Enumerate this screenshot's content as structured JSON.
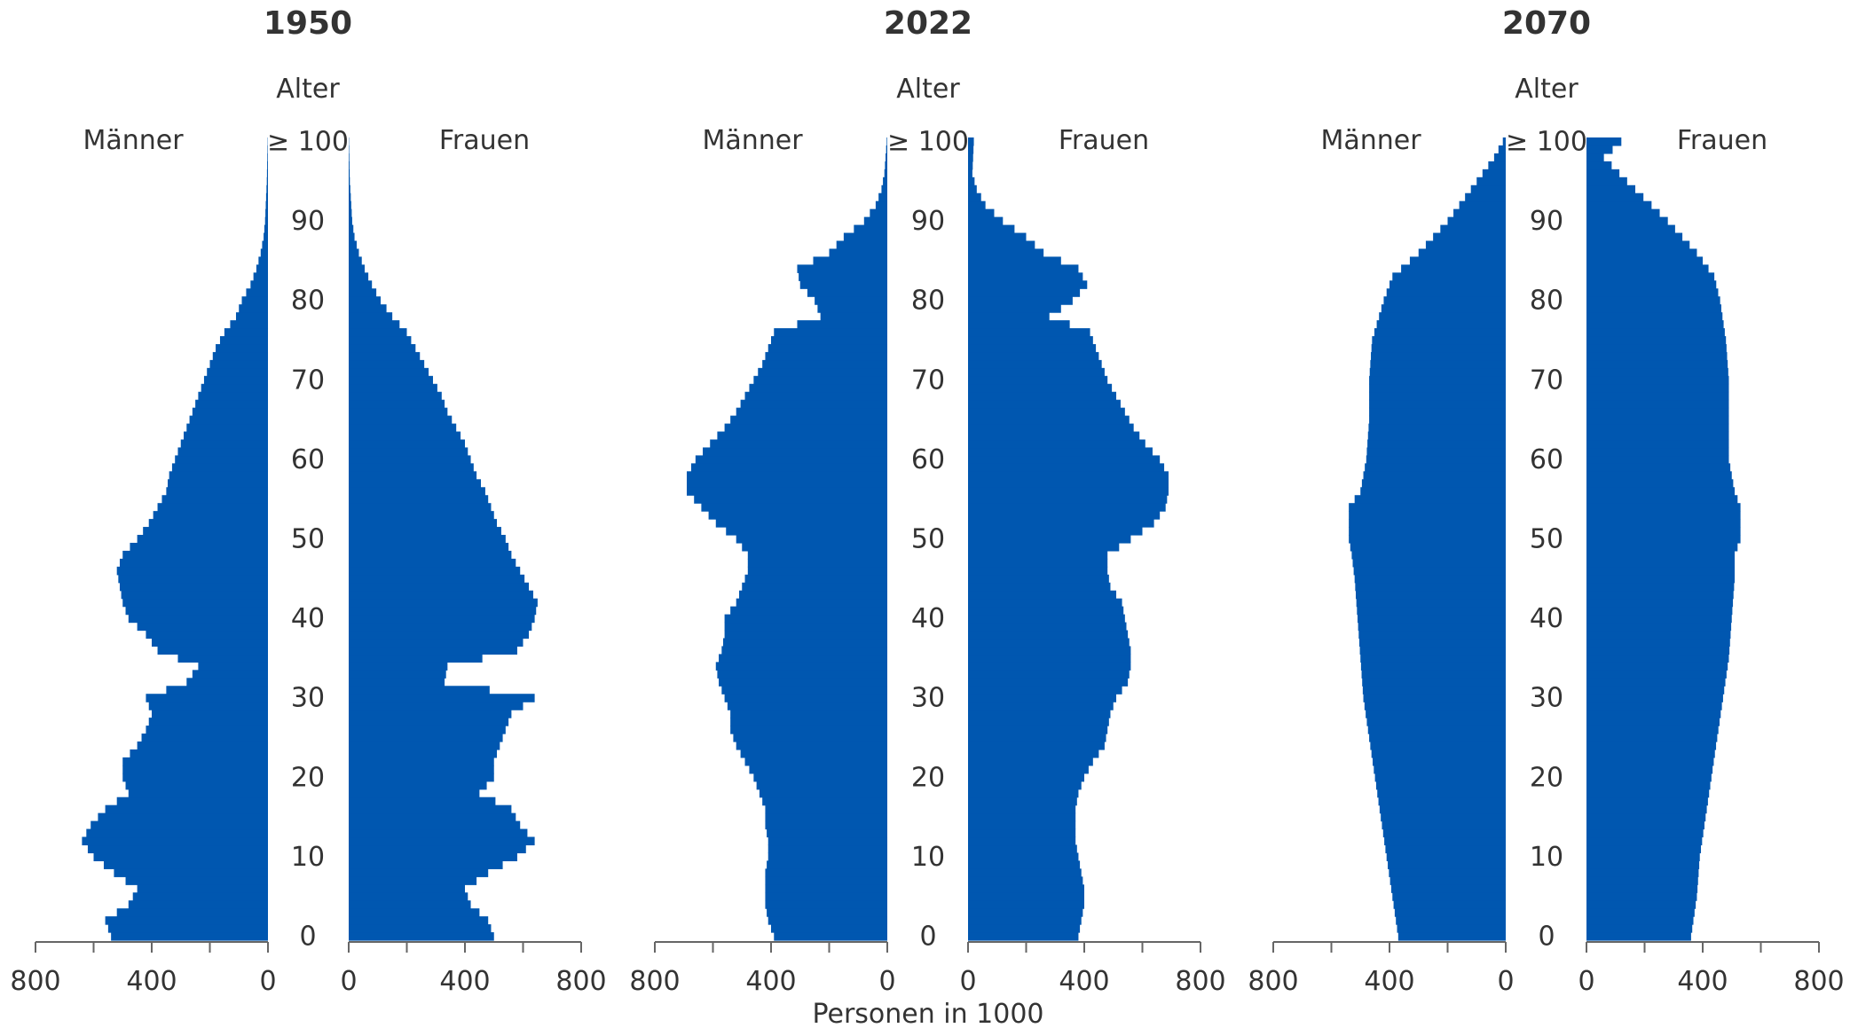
{
  "chart_data": {
    "type": "bar",
    "xlabel": "Personen in 1000",
    "age_label": "Alter",
    "male_label": "Männer",
    "female_label": "Frauen",
    "bar_color": "#0057b0",
    "axis_color": "#666666",
    "text_color": "#333333",
    "xlim": [
      0,
      800
    ],
    "x_ticks": [
      "800",
      "400",
      "0",
      "0",
      "400",
      "800"
    ],
    "age_ticks": [
      "0",
      "10",
      "20",
      "30",
      "40",
      "50",
      "60",
      "70",
      "80",
      "90",
      "≥ 100"
    ],
    "panels": [
      {
        "title": "1950",
        "male_keys": [
          [
            0,
            540
          ],
          [
            2,
            560
          ],
          [
            4,
            480
          ],
          [
            6,
            450
          ],
          [
            8,
            530
          ],
          [
            10,
            600
          ],
          [
            12,
            640
          ],
          [
            14,
            610
          ],
          [
            16,
            560
          ],
          [
            18,
            480
          ],
          [
            20,
            500
          ],
          [
            22,
            500
          ],
          [
            24,
            450
          ],
          [
            26,
            420
          ],
          [
            28,
            400
          ],
          [
            30,
            420
          ],
          [
            32,
            280
          ],
          [
            34,
            240
          ],
          [
            36,
            380
          ],
          [
            38,
            420
          ],
          [
            40,
            480
          ],
          [
            42,
            500
          ],
          [
            44,
            510
          ],
          [
            46,
            520
          ],
          [
            48,
            500
          ],
          [
            50,
            450
          ],
          [
            52,
            410
          ],
          [
            54,
            380
          ],
          [
            56,
            350
          ],
          [
            58,
            340
          ],
          [
            60,
            320
          ],
          [
            62,
            300
          ],
          [
            64,
            280
          ],
          [
            66,
            260
          ],
          [
            68,
            240
          ],
          [
            70,
            220
          ],
          [
            72,
            200
          ],
          [
            74,
            180
          ],
          [
            76,
            150
          ],
          [
            78,
            110
          ],
          [
            80,
            90
          ],
          [
            82,
            60
          ],
          [
            84,
            40
          ],
          [
            86,
            25
          ],
          [
            88,
            15
          ],
          [
            90,
            10
          ],
          [
            95,
            4
          ],
          [
            100,
            1
          ]
        ],
        "female_keys": [
          [
            0,
            500
          ],
          [
            2,
            480
          ],
          [
            4,
            420
          ],
          [
            6,
            400
          ],
          [
            8,
            480
          ],
          [
            10,
            580
          ],
          [
            12,
            640
          ],
          [
            14,
            590
          ],
          [
            16,
            560
          ],
          [
            18,
            450
          ],
          [
            20,
            500
          ],
          [
            22,
            500
          ],
          [
            24,
            520
          ],
          [
            26,
            540
          ],
          [
            28,
            560
          ],
          [
            30,
            640
          ],
          [
            32,
            330
          ],
          [
            34,
            340
          ],
          [
            36,
            580
          ],
          [
            38,
            620
          ],
          [
            40,
            640
          ],
          [
            42,
            650
          ],
          [
            44,
            620
          ],
          [
            46,
            590
          ],
          [
            48,
            560
          ],
          [
            50,
            540
          ],
          [
            52,
            510
          ],
          [
            54,
            490
          ],
          [
            56,
            470
          ],
          [
            58,
            440
          ],
          [
            60,
            420
          ],
          [
            62,
            400
          ],
          [
            64,
            370
          ],
          [
            66,
            340
          ],
          [
            68,
            320
          ],
          [
            70,
            290
          ],
          [
            72,
            260
          ],
          [
            74,
            230
          ],
          [
            76,
            200
          ],
          [
            78,
            150
          ],
          [
            80,
            110
          ],
          [
            82,
            80
          ],
          [
            84,
            55
          ],
          [
            86,
            35
          ],
          [
            88,
            20
          ],
          [
            90,
            12
          ],
          [
            95,
            4
          ],
          [
            100,
            1
          ]
        ]
      },
      {
        "title": "2022",
        "male_keys": [
          [
            0,
            390
          ],
          [
            2,
            410
          ],
          [
            4,
            420
          ],
          [
            6,
            420
          ],
          [
            8,
            420
          ],
          [
            10,
            410
          ],
          [
            12,
            410
          ],
          [
            14,
            420
          ],
          [
            16,
            420
          ],
          [
            18,
            440
          ],
          [
            20,
            460
          ],
          [
            22,
            490
          ],
          [
            24,
            520
          ],
          [
            26,
            540
          ],
          [
            28,
            540
          ],
          [
            30,
            560
          ],
          [
            32,
            580
          ],
          [
            34,
            590
          ],
          [
            36,
            570
          ],
          [
            38,
            560
          ],
          [
            40,
            560
          ],
          [
            42,
            520
          ],
          [
            44,
            500
          ],
          [
            46,
            480
          ],
          [
            48,
            480
          ],
          [
            50,
            520
          ],
          [
            52,
            590
          ],
          [
            54,
            640
          ],
          [
            56,
            690
          ],
          [
            58,
            690
          ],
          [
            60,
            660
          ],
          [
            62,
            610
          ],
          [
            64,
            560
          ],
          [
            66,
            520
          ],
          [
            68,
            490
          ],
          [
            70,
            460
          ],
          [
            72,
            430
          ],
          [
            74,
            410
          ],
          [
            76,
            390
          ],
          [
            78,
            230
          ],
          [
            80,
            250
          ],
          [
            82,
            300
          ],
          [
            84,
            310
          ],
          [
            86,
            200
          ],
          [
            88,
            150
          ],
          [
            90,
            80
          ],
          [
            92,
            40
          ],
          [
            94,
            20
          ],
          [
            96,
            10
          ],
          [
            100,
            2
          ]
        ],
        "female_keys": [
          [
            0,
            380
          ],
          [
            2,
            390
          ],
          [
            4,
            400
          ],
          [
            6,
            400
          ],
          [
            8,
            390
          ],
          [
            10,
            380
          ],
          [
            12,
            370
          ],
          [
            14,
            370
          ],
          [
            16,
            370
          ],
          [
            18,
            380
          ],
          [
            20,
            400
          ],
          [
            22,
            430
          ],
          [
            24,
            470
          ],
          [
            26,
            480
          ],
          [
            28,
            490
          ],
          [
            30,
            510
          ],
          [
            32,
            550
          ],
          [
            34,
            560
          ],
          [
            36,
            560
          ],
          [
            38,
            550
          ],
          [
            40,
            540
          ],
          [
            42,
            530
          ],
          [
            44,
            490
          ],
          [
            46,
            480
          ],
          [
            48,
            480
          ],
          [
            50,
            560
          ],
          [
            52,
            640
          ],
          [
            54,
            680
          ],
          [
            56,
            690
          ],
          [
            58,
            690
          ],
          [
            60,
            660
          ],
          [
            62,
            610
          ],
          [
            64,
            570
          ],
          [
            66,
            540
          ],
          [
            68,
            510
          ],
          [
            70,
            480
          ],
          [
            72,
            460
          ],
          [
            74,
            440
          ],
          [
            76,
            420
          ],
          [
            78,
            280
          ],
          [
            80,
            360
          ],
          [
            82,
            410
          ],
          [
            84,
            380
          ],
          [
            86,
            260
          ],
          [
            88,
            200
          ],
          [
            90,
            120
          ],
          [
            92,
            60
          ],
          [
            94,
            30
          ],
          [
            96,
            15
          ],
          [
            100,
            20
          ]
        ]
      },
      {
        "title": "2070",
        "male_keys": [
          [
            0,
            370
          ],
          [
            5,
            390
          ],
          [
            10,
            410
          ],
          [
            15,
            430
          ],
          [
            20,
            450
          ],
          [
            25,
            470
          ],
          [
            30,
            490
          ],
          [
            35,
            500
          ],
          [
            40,
            510
          ],
          [
            45,
            520
          ],
          [
            48,
            530
          ],
          [
            50,
            540
          ],
          [
            54,
            540
          ],
          [
            56,
            500
          ],
          [
            60,
            480
          ],
          [
            65,
            470
          ],
          [
            70,
            470
          ],
          [
            75,
            460
          ],
          [
            80,
            420
          ],
          [
            83,
            390
          ],
          [
            86,
            300
          ],
          [
            90,
            200
          ],
          [
            95,
            100
          ],
          [
            98,
            40
          ],
          [
            100,
            10
          ]
        ],
        "female_keys": [
          [
            0,
            360
          ],
          [
            5,
            380
          ],
          [
            10,
            390
          ],
          [
            15,
            410
          ],
          [
            20,
            430
          ],
          [
            25,
            450
          ],
          [
            30,
            470
          ],
          [
            35,
            490
          ],
          [
            40,
            500
          ],
          [
            45,
            510
          ],
          [
            48,
            510
          ],
          [
            50,
            530
          ],
          [
            54,
            530
          ],
          [
            56,
            510
          ],
          [
            60,
            490
          ],
          [
            65,
            490
          ],
          [
            70,
            490
          ],
          [
            75,
            480
          ],
          [
            80,
            460
          ],
          [
            83,
            440
          ],
          [
            86,
            380
          ],
          [
            90,
            280
          ],
          [
            95,
            140
          ],
          [
            98,
            60
          ],
          [
            100,
            120
          ]
        ]
      }
    ]
  }
}
